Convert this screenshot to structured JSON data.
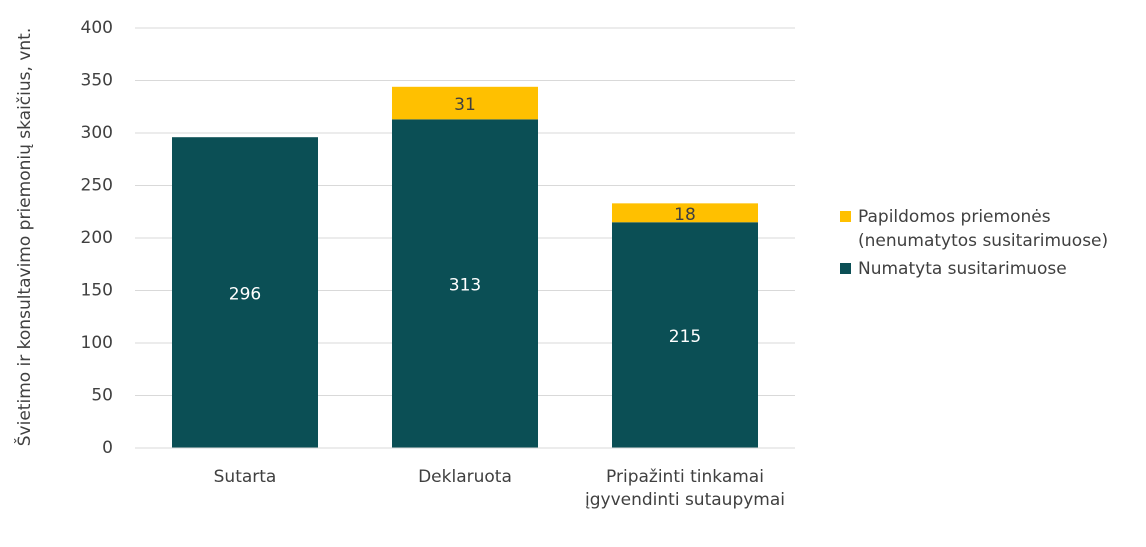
{
  "chart_data": {
    "type": "stacked_bar",
    "y_label": "Švietimo ir konsultavimo priemonių skaičius, vnt.",
    "categories": [
      "Sutarta",
      "Deklaruota",
      "Pripažinti tinkamai įgyvendinti sutaupymai"
    ],
    "series": [
      {
        "name": "Numatyta susitarimuose",
        "color": "#0b4f55",
        "values": [
          296,
          313,
          215
        ]
      },
      {
        "name": "Papildomos priemonės (nenumatytos susitarimuose)",
        "color": "#ffc000",
        "values": [
          null,
          31,
          18
        ]
      }
    ],
    "ylim": [
      0,
      400
    ],
    "yticks": [
      0,
      50,
      100,
      150,
      200,
      250,
      300,
      350,
      400
    ],
    "grid": true
  }
}
